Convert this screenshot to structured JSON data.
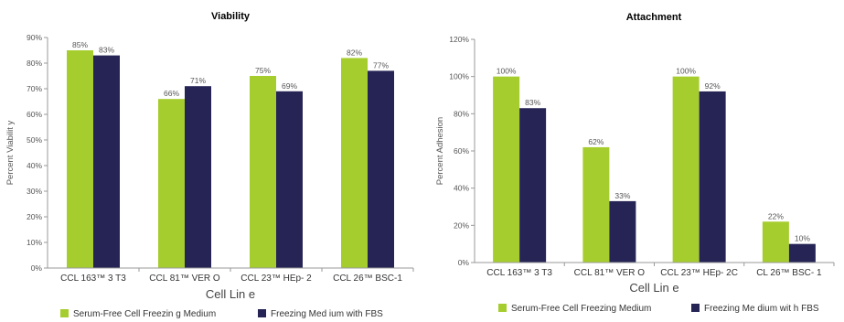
{
  "colors": {
    "series1": "#a6cd2e",
    "series2": "#252455",
    "axis": "#999999"
  },
  "chart_data": [
    {
      "type": "bar",
      "title": "Viability",
      "xlabel": "Cell Lin e",
      "ylabel": "Percent Viabilit  y",
      "ylim": [
        0,
        90
      ],
      "yticks": [
        "0%",
        "10%",
        "20%",
        "30%",
        "40%",
        "50%",
        "60%",
        "70%",
        "80%",
        "90%"
      ],
      "categories": [
        "CCL 163™ 3 T3",
        "CCL 81™ VER O",
        "CCL 23™ HEp- 2",
        "CCL 26™ BSC-1"
      ],
      "series": [
        {
          "name": "Serum-Free Cell Freezin   g Medium",
          "values": [
            85,
            66,
            75,
            82
          ],
          "labels": [
            "85%",
            "66%",
            "75%",
            "82%"
          ]
        },
        {
          "name": "Freezing Med ium with FBS",
          "values": [
            83,
            71,
            69,
            77
          ],
          "labels": [
            "83%",
            "71%",
            "69%",
            "77%"
          ]
        }
      ],
      "grid": false,
      "legend": "bottom"
    },
    {
      "type": "bar",
      "title": "Attachment",
      "xlabel": "Cell Lin e",
      "ylabel": "Percent Adhesion",
      "ylim": [
        0,
        120
      ],
      "yticks": [
        "0%",
        "20%",
        "40%",
        "60%",
        "80%",
        "100%",
        "120%"
      ],
      "categories": [
        "CCL 163™ 3 T3",
        "CCL 81™ VER O",
        "CCL 23™ HEp- 2C",
        "CL 26™ BSC- 1"
      ],
      "series": [
        {
          "name": "Serum-Free Cell Freezing    Medium",
          "values": [
            100,
            62,
            100,
            22
          ],
          "labels": [
            "100%",
            "62%",
            "100%",
            "22%"
          ]
        },
        {
          "name": "Freezing Me dium wit h FBS",
          "values": [
            83,
            33,
            92,
            10
          ],
          "labels": [
            "83%",
            "33%",
            "92%",
            "10%"
          ]
        }
      ],
      "grid": false,
      "legend": "bottom"
    }
  ]
}
